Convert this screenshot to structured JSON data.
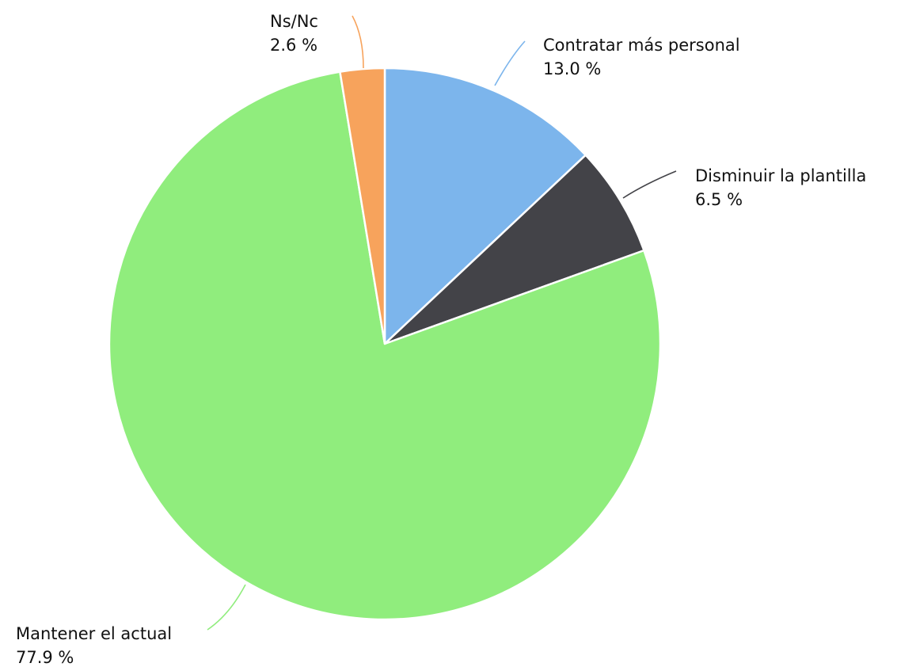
{
  "chart_data": {
    "type": "pie",
    "slices": [
      {
        "label": "Contratar más personal",
        "value": 13.0,
        "value_label": "13.0 %",
        "color": "#7cb5ec"
      },
      {
        "label": "Disminuir la plantilla",
        "value": 6.5,
        "value_label": "6.5 %",
        "color": "#434348"
      },
      {
        "label": "Mantener el actual",
        "value": 77.9,
        "value_label": "77.9 %",
        "color": "#90ed7d"
      },
      {
        "label": "Ns/Nc",
        "value": 2.6,
        "value_label": "2.6 %",
        "color": "#f7a35c"
      }
    ],
    "start_angle_deg": 0,
    "direction": "clockwise",
    "unit": "%"
  }
}
